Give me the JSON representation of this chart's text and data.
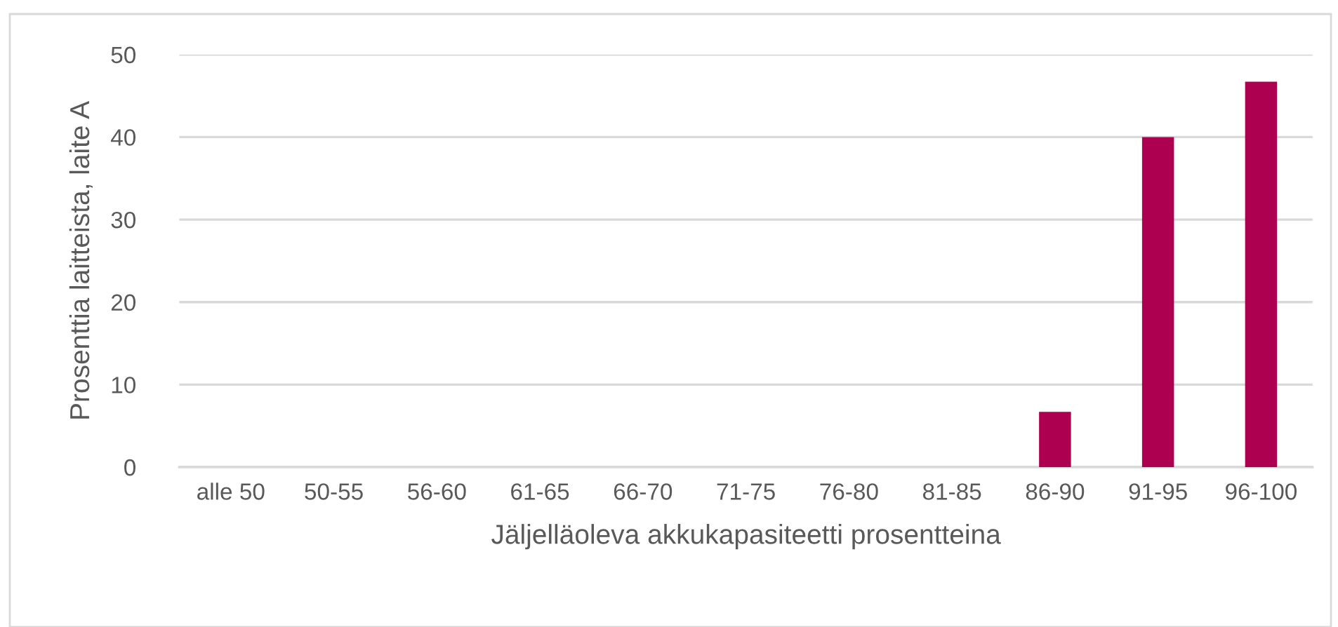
{
  "chart_data": {
    "type": "bar",
    "xlabel": "Jäljelläoleva akkukapasiteetti prosentteina",
    "ylabel": "Prosenttia laitteista, laite A",
    "categories": [
      "alle 50",
      "50-55",
      "56-60",
      "61-65",
      "66-70",
      "71-75",
      "76-80",
      "81-85",
      "86-90",
      "91-95",
      "96-100"
    ],
    "values": [
      0,
      0,
      0,
      0,
      0,
      0,
      0,
      0,
      6.7,
      40,
      46.7
    ],
    "color": "#ad0050",
    "ylim": [
      0,
      50
    ],
    "yticks": [
      0,
      10,
      20,
      30,
      40,
      50
    ],
    "grid": "y"
  }
}
